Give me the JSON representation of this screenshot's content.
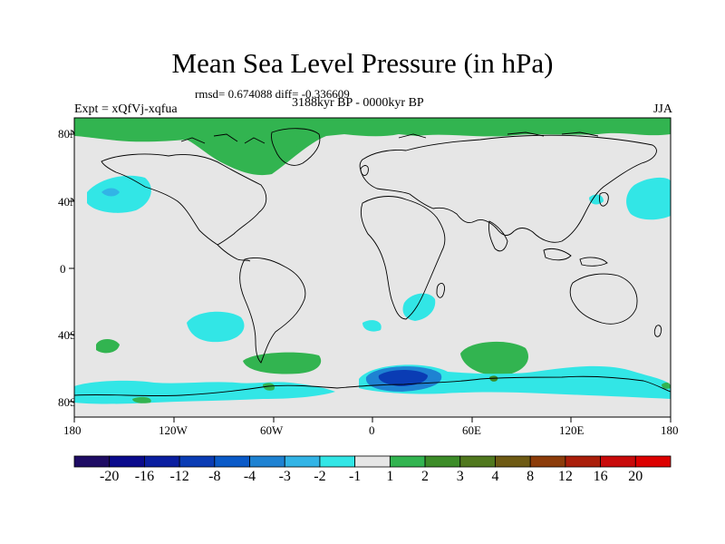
{
  "title": "Mean Sea Level Pressure (in hPa)",
  "stats_text": "rmsd= 0.674088 diff= -0.336609",
  "experiment_label": "Expt = xQfVj-xqfua",
  "period_label": "3188kyr BP - 0000kyr BP",
  "season_label": "JJA",
  "lat_ticks": [
    "80N",
    "40N",
    "0",
    "40S",
    "80S"
  ],
  "lon_ticks": [
    "180",
    "120W",
    "60W",
    "0",
    "60E",
    "120E",
    "180"
  ],
  "colorbar": {
    "labels": [
      "-20",
      "-16",
      "-12",
      "-8",
      "-4",
      "-3",
      "-2",
      "-1",
      "1",
      "2",
      "3",
      "4",
      "8",
      "12",
      "16",
      "20"
    ],
    "colors": [
      "#1e0c64",
      "#0a0a8c",
      "#0a1ea0",
      "#0a3cb4",
      "#0a5ac8",
      "#1e82d2",
      "#32b4e6",
      "#32e6e6",
      "#e6e6e6",
      "#32b450",
      "#3c8c28",
      "#50781e",
      "#6e5a14",
      "#8c3c0a",
      "#aa1e0a",
      "#c80a0a",
      "#dc0000"
    ]
  },
  "colors": {
    "background_field": "#e6e6e6",
    "frame": "#000000"
  }
}
